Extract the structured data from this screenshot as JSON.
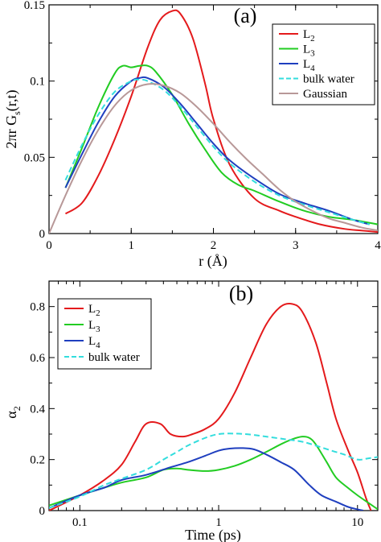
{
  "chart_data": [
    {
      "panel_label": "(a)",
      "type": "line",
      "xlabel": "r (Å)",
      "ylabel": {
        "main": "2πr G",
        "sub": "s",
        "tail": "(r,t)"
      },
      "xlim": [
        0,
        4
      ],
      "ylim": [
        0,
        0.15
      ],
      "xticks": [
        "0",
        "1",
        "2",
        "3",
        "4"
      ],
      "yticks": [
        "0",
        "0.05",
        "0.1",
        "0.15"
      ],
      "xtick_values": [
        0,
        1,
        2,
        3,
        4
      ],
      "ytick_values": [
        0,
        0.05,
        0.1,
        0.15
      ],
      "legend_position": "top-right",
      "series": [
        {
          "name": "L",
          "sub": "2",
          "color": "#e41a1c",
          "dash": "solid",
          "x": [
            0.2,
            0.4,
            0.6,
            0.8,
            1.0,
            1.2,
            1.35,
            1.5,
            1.6,
            1.75,
            1.9,
            2.0,
            2.2,
            2.5,
            2.8,
            3.0,
            3.3,
            3.6,
            3.8,
            4.0
          ],
          "y": [
            0.013,
            0.02,
            0.038,
            0.062,
            0.09,
            0.122,
            0.14,
            0.146,
            0.144,
            0.128,
            0.098,
            0.075,
            0.045,
            0.023,
            0.015,
            0.011,
            0.006,
            0.003,
            0.002,
            0.001
          ]
        },
        {
          "name": "L",
          "sub": "3",
          "color": "#22cc22",
          "dash": "solid",
          "x": [
            0.2,
            0.4,
            0.6,
            0.8,
            0.9,
            1.0,
            1.1,
            1.2,
            1.3,
            1.5,
            1.7,
            1.9,
            2.1,
            2.3,
            2.5,
            2.8,
            3.1,
            3.4,
            3.7,
            4.0
          ],
          "y": [
            0.03,
            0.056,
            0.083,
            0.105,
            0.11,
            0.109,
            0.11,
            0.11,
            0.106,
            0.091,
            0.072,
            0.055,
            0.04,
            0.032,
            0.028,
            0.021,
            0.015,
            0.011,
            0.009,
            0.006
          ]
        },
        {
          "name": "L",
          "sub": "4",
          "color": "#1f3fbf",
          "dash": "solid",
          "x": [
            0.2,
            0.4,
            0.6,
            0.8,
            1.0,
            1.1,
            1.2,
            1.4,
            1.6,
            1.8,
            2.0,
            2.2,
            2.5,
            2.8,
            3.1,
            3.4,
            3.7,
            3.9
          ],
          "y": [
            0.03,
            0.052,
            0.073,
            0.09,
            0.1,
            0.102,
            0.102,
            0.096,
            0.085,
            0.072,
            0.059,
            0.048,
            0.036,
            0.026,
            0.02,
            0.015,
            0.009,
            0.006
          ]
        },
        {
          "name": "bulk water",
          "sub": "",
          "color": "#33dddd",
          "dash": "dashed",
          "x": [
            0.2,
            0.4,
            0.6,
            0.8,
            1.0,
            1.1,
            1.2,
            1.4,
            1.6,
            1.8,
            2.0,
            2.2,
            2.5,
            2.8,
            3.1,
            3.4,
            3.7,
            3.9
          ],
          "y": [
            0.035,
            0.058,
            0.078,
            0.093,
            0.1,
            0.101,
            0.1,
            0.094,
            0.083,
            0.07,
            0.057,
            0.046,
            0.034,
            0.025,
            0.019,
            0.014,
            0.009,
            0.006
          ]
        },
        {
          "name": "Gaussian",
          "sub": "",
          "color": "#b89898",
          "dash": "solid",
          "x": [
            0.0,
            0.2,
            0.4,
            0.6,
            0.8,
            1.0,
            1.2,
            1.4,
            1.6,
            1.8,
            2.0,
            2.2,
            2.4,
            2.6,
            2.8,
            3.0,
            3.2,
            3.4,
            3.6,
            3.8,
            4.0
          ],
          "y": [
            0.0,
            0.025,
            0.048,
            0.068,
            0.084,
            0.094,
            0.098,
            0.097,
            0.092,
            0.083,
            0.072,
            0.06,
            0.049,
            0.039,
            0.029,
            0.021,
            0.015,
            0.01,
            0.007,
            0.004,
            0.002
          ]
        }
      ]
    },
    {
      "panel_label": "(b)",
      "type": "line",
      "xscale": "log",
      "xlabel": "Time (ps)",
      "ylabel": {
        "main": "α",
        "sub": "2",
        "tail": ""
      },
      "xlim": [
        0.06,
        14
      ],
      "ylim": [
        0,
        0.9
      ],
      "xticks": [
        "0.1",
        "1",
        "10"
      ],
      "yticks": [
        "0",
        "0.2",
        "0.4",
        "0.6",
        "0.8"
      ],
      "xtick_values": [
        0.1,
        1,
        10
      ],
      "ytick_values": [
        0,
        0.2,
        0.4,
        0.6,
        0.8
      ],
      "legend_position": "top-left",
      "series": [
        {
          "name": "L",
          "sub": "2",
          "color": "#e41a1c",
          "dash": "solid",
          "x": [
            0.06,
            0.1,
            0.15,
            0.2,
            0.25,
            0.3,
            0.38,
            0.45,
            0.55,
            0.65,
            0.8,
            1.0,
            1.3,
            1.7,
            2.2,
            2.8,
            3.4,
            4.0,
            5.0,
            6.0,
            7.0,
            8.5,
            10.0,
            11.5,
            12.5
          ],
          "y": [
            0.0,
            0.06,
            0.12,
            0.18,
            0.27,
            0.34,
            0.34,
            0.3,
            0.29,
            0.3,
            0.32,
            0.36,
            0.46,
            0.6,
            0.73,
            0.8,
            0.81,
            0.78,
            0.66,
            0.5,
            0.36,
            0.24,
            0.15,
            0.05,
            0.0
          ]
        },
        {
          "name": "L",
          "sub": "3",
          "color": "#22cc22",
          "dash": "solid",
          "x": [
            0.06,
            0.1,
            0.15,
            0.2,
            0.3,
            0.4,
            0.5,
            0.6,
            0.8,
            1.0,
            1.3,
            1.7,
            2.2,
            2.8,
            3.4,
            4.0,
            4.5,
            5.0,
            6.0,
            7.0,
            8.5,
            10.0,
            12.0,
            14.0
          ],
          "y": [
            0.02,
            0.06,
            0.09,
            0.11,
            0.13,
            0.16,
            0.165,
            0.16,
            0.155,
            0.16,
            0.175,
            0.2,
            0.23,
            0.26,
            0.28,
            0.29,
            0.285,
            0.26,
            0.19,
            0.13,
            0.09,
            0.06,
            0.03,
            0.005
          ]
        },
        {
          "name": "L",
          "sub": "4",
          "color": "#1f3fbf",
          "dash": "solid",
          "x": [
            0.06,
            0.1,
            0.15,
            0.2,
            0.3,
            0.45,
            0.6,
            0.8,
            1.0,
            1.2,
            1.5,
            1.8,
            2.2,
            2.8,
            3.5,
            4.5,
            5.5,
            7.0,
            8.5,
            10.0,
            11.0
          ],
          "y": [
            0.01,
            0.06,
            0.09,
            0.12,
            0.14,
            0.17,
            0.19,
            0.215,
            0.235,
            0.243,
            0.245,
            0.24,
            0.22,
            0.19,
            0.16,
            0.1,
            0.06,
            0.035,
            0.015,
            0.005,
            0.0
          ]
        },
        {
          "name": "bulk water",
          "sub": "",
          "color": "#33dddd",
          "dash": "dashed",
          "x": [
            0.06,
            0.1,
            0.15,
            0.2,
            0.3,
            0.4,
            0.5,
            0.6,
            0.8,
            1.0,
            1.3,
            1.7,
            2.2,
            3.0,
            4.0,
            5.0,
            6.5,
            8.0,
            10.0,
            12.0,
            14.0
          ],
          "y": [
            0.01,
            0.055,
            0.1,
            0.125,
            0.16,
            0.2,
            0.23,
            0.255,
            0.285,
            0.3,
            0.302,
            0.298,
            0.29,
            0.28,
            0.27,
            0.255,
            0.235,
            0.22,
            0.2,
            0.205,
            0.21
          ]
        }
      ]
    }
  ]
}
